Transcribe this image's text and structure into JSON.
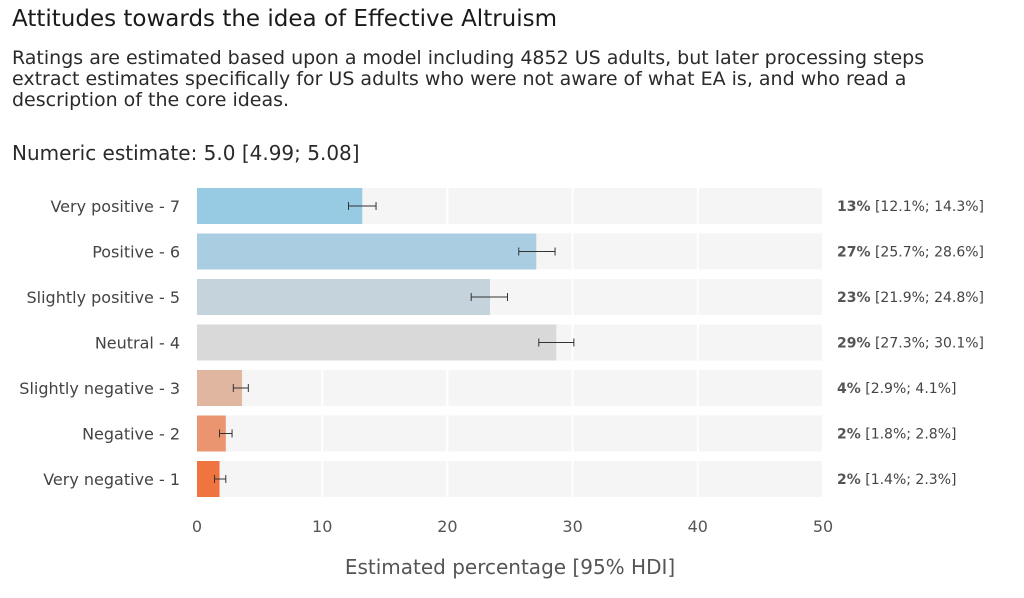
{
  "header": {
    "title": "Attitudes towards the idea of Effective Altruism",
    "subtitle_lines": [
      "Ratings are estimated based upon a model including 4852 US adults, but later processing steps",
      "extract estimates specifically for US adults who were not aware of what EA is, and who read a",
      "description of the core ideas."
    ],
    "numeric_estimate": "Numeric estimate: 5.0 [4.99; 5.08]"
  },
  "chart_data": {
    "type": "bar",
    "orientation": "horizontal",
    "xlabel": "Estimated percentage [95% HDI]",
    "ylabel": "",
    "xlim": [
      0,
      50
    ],
    "xticks": [
      0,
      10,
      20,
      30,
      40,
      50
    ],
    "grid": true,
    "categories": [
      "Very positive - 7",
      "Positive - 6",
      "Slightly positive - 5",
      "Neutral - 4",
      "Slightly negative - 3",
      "Negative - 2",
      "Very negative - 1"
    ],
    "values": [
      13.2,
      27.1,
      23.4,
      28.7,
      3.6,
      2.3,
      1.8
    ],
    "lower": [
      12.1,
      25.7,
      21.9,
      27.3,
      2.9,
      1.8,
      1.4
    ],
    "upper": [
      14.3,
      28.6,
      24.8,
      30.1,
      4.1,
      2.8,
      2.3
    ],
    "value_labels": [
      "13%",
      "27%",
      "23%",
      "29%",
      "4%",
      "2%",
      "2%"
    ],
    "interval_labels": [
      "[12.1%; 14.3%]",
      "[25.7%; 28.6%]",
      "[21.9%; 24.8%]",
      "[27.3%; 30.1%]",
      "[2.9%; 4.1%]",
      "[1.8%; 2.8%]",
      "[1.4%; 2.3%]"
    ],
    "colors": [
      "#96cbe3",
      "#aacde2",
      "#c5d3dc",
      "#d9d9d9",
      "#e0b6a1",
      "#eb9570",
      "#ef7440"
    ],
    "background_color": "#f5f5f5"
  }
}
